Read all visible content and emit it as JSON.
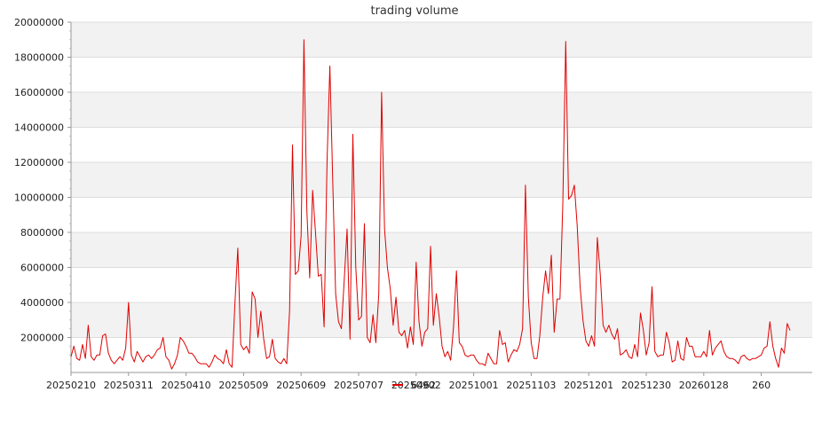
{
  "chart_data": {
    "type": "line",
    "title": "trading volume",
    "ylim": [
      0,
      20000000
    ],
    "yticks": [
      "2000000",
      "4000000",
      "6000000",
      "8000000",
      "10000000",
      "12000000",
      "14000000",
      "16000000",
      "18000000",
      "20000000"
    ],
    "xtick_labels": [
      "20250210",
      "20250311",
      "20250410",
      "20250509",
      "20250609",
      "20250707",
      "20250902",
      "20251001",
      "20251103",
      "20251201",
      "20251230",
      "20260128",
      "260"
    ],
    "grid": true,
    "legend_position": "bottom",
    "series": [
      {
        "name": "6462",
        "color": "#e00000",
        "values": [
          900000,
          1500000,
          800000,
          700000,
          1600000,
          800000,
          2700000,
          900000,
          700000,
          1000000,
          1000000,
          2100000,
          2200000,
          1100000,
          700000,
          500000,
          700000,
          900000,
          700000,
          1400000,
          4000000,
          1000000,
          600000,
          1200000,
          900000,
          600000,
          900000,
          1000000,
          800000,
          1000000,
          1300000,
          1400000,
          2000000,
          900000,
          700000,
          200000,
          500000,
          1000000,
          2000000,
          1800000,
          1500000,
          1100000,
          1100000,
          900000,
          600000,
          500000,
          500000,
          500000,
          300000,
          600000,
          1000000,
          800000,
          700000,
          500000,
          1300000,
          500000,
          300000,
          4000000,
          7100000,
          1600000,
          1300000,
          1500000,
          1100000,
          4600000,
          4200000,
          2000000,
          3500000,
          1900000,
          800000,
          900000,
          1900000,
          800000,
          600000,
          500000,
          800000,
          500000,
          3500000,
          13000000,
          5600000,
          5800000,
          7800000,
          19000000,
          9200000,
          5400000,
          10400000,
          8000000,
          5500000,
          5600000,
          2600000,
          12000000,
          17500000,
          11000000,
          4500000,
          2900000,
          2500000,
          5300000,
          8200000,
          1900000,
          13600000,
          6000000,
          3000000,
          3200000,
          8500000,
          2000000,
          1700000,
          3300000,
          1700000,
          4500000,
          16000000,
          8200000,
          6000000,
          4800000,
          2700000,
          4300000,
          2300000,
          2100000,
          2400000,
          1400000,
          2600000,
          1600000,
          6300000,
          2900000,
          1500000,
          2300000,
          2500000,
          7200000,
          2700000,
          4500000,
          3200000,
          1500000,
          900000,
          1200000,
          700000,
          2600000,
          5800000,
          1700000,
          1500000,
          1000000,
          900000,
          1000000,
          1000000,
          700000,
          500000,
          500000,
          400000,
          1100000,
          800000,
          500000,
          500000,
          2400000,
          1600000,
          1700000,
          600000,
          1000000,
          1300000,
          1200000,
          1600000,
          2500000,
          10700000,
          4300000,
          1700000,
          800000,
          800000,
          2100000,
          4300000,
          5800000,
          4500000,
          6700000,
          2300000,
          4200000,
          4200000,
          9600000,
          18900000,
          9900000,
          10100000,
          10700000,
          8400000,
          4900000,
          3000000,
          1800000,
          1500000,
          2100000,
          1500000,
          7700000,
          5600000,
          2700000,
          2300000,
          2700000,
          2200000,
          1900000,
          2500000,
          1000000,
          1100000,
          1300000,
          900000,
          800000,
          1600000,
          900000,
          3400000,
          2400000,
          1000000,
          1700000,
          4900000,
          1200000,
          900000,
          1000000,
          1000000,
          2300000,
          1700000,
          600000,
          700000,
          1800000,
          800000,
          700000,
          2000000,
          1500000,
          1500000,
          900000,
          900000,
          900000,
          1200000,
          900000,
          2400000,
          1000000,
          1400000,
          1600000,
          1800000,
          1200000,
          900000,
          800000,
          800000,
          700000,
          500000,
          900000,
          1000000,
          800000,
          700000,
          800000,
          800000,
          900000,
          1000000,
          1400000,
          1500000,
          2900000,
          1500000,
          800000,
          300000,
          1400000,
          1100000,
          2800000,
          2400000
        ]
      }
    ]
  }
}
